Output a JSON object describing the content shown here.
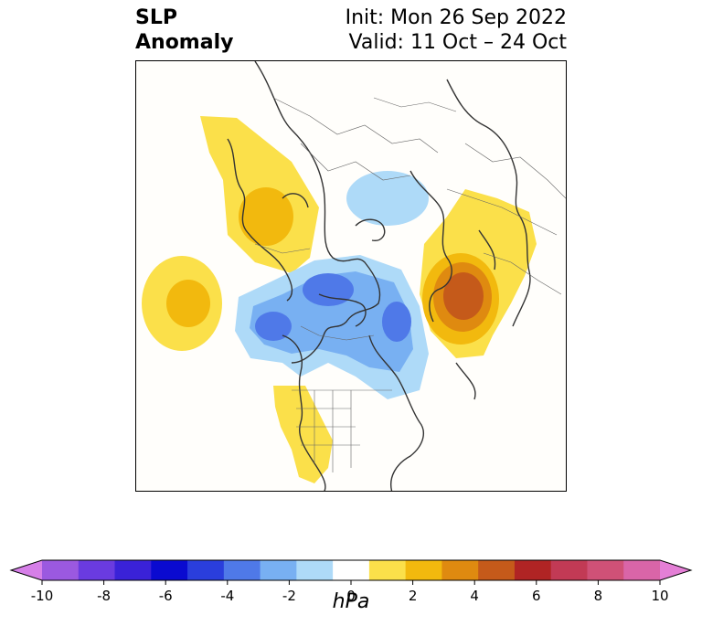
{
  "header": {
    "title_line1": "SLP",
    "title_line2": "Anomaly",
    "init": "Init: Mon 26 Sep 2022",
    "valid": "Valid: 11 Oct – 24 Oct"
  },
  "colorbar": {
    "unit": "hPa",
    "tick_labels": [
      "-10",
      "-8",
      "-6",
      "-4",
      "-2",
      "0",
      "2",
      "4",
      "6",
      "8",
      "10"
    ],
    "colors": [
      "#d67fe8",
      "#9b59e0",
      "#6a3be0",
      "#3a22d8",
      "#0a0ad0",
      "#2a3edc",
      "#4f79e8",
      "#78b0f2",
      "#aedaf8",
      "#ffffff",
      "#fbe04a",
      "#f2b90e",
      "#df8a10",
      "#c55a1a",
      "#b02424",
      "#c23a55",
      "#cf5177",
      "#d965a8",
      "#e47fd6"
    ]
  },
  "map": {
    "projection": "north-polar",
    "anomalies": [
      {
        "name": "gulf-of-alaska-positive",
        "sign": "positive",
        "max_level": 3
      },
      {
        "name": "europe-positive",
        "sign": "positive",
        "max_level": 3
      },
      {
        "name": "east-asia-positive",
        "sign": "positive",
        "max_level": 5
      },
      {
        "name": "central-us-positive",
        "sign": "positive",
        "max_level": 1
      },
      {
        "name": "canada-arctic-negative",
        "sign": "negative",
        "max_level": 3
      },
      {
        "name": "scandinavia-negative",
        "sign": "negative",
        "max_level": 1
      }
    ]
  }
}
